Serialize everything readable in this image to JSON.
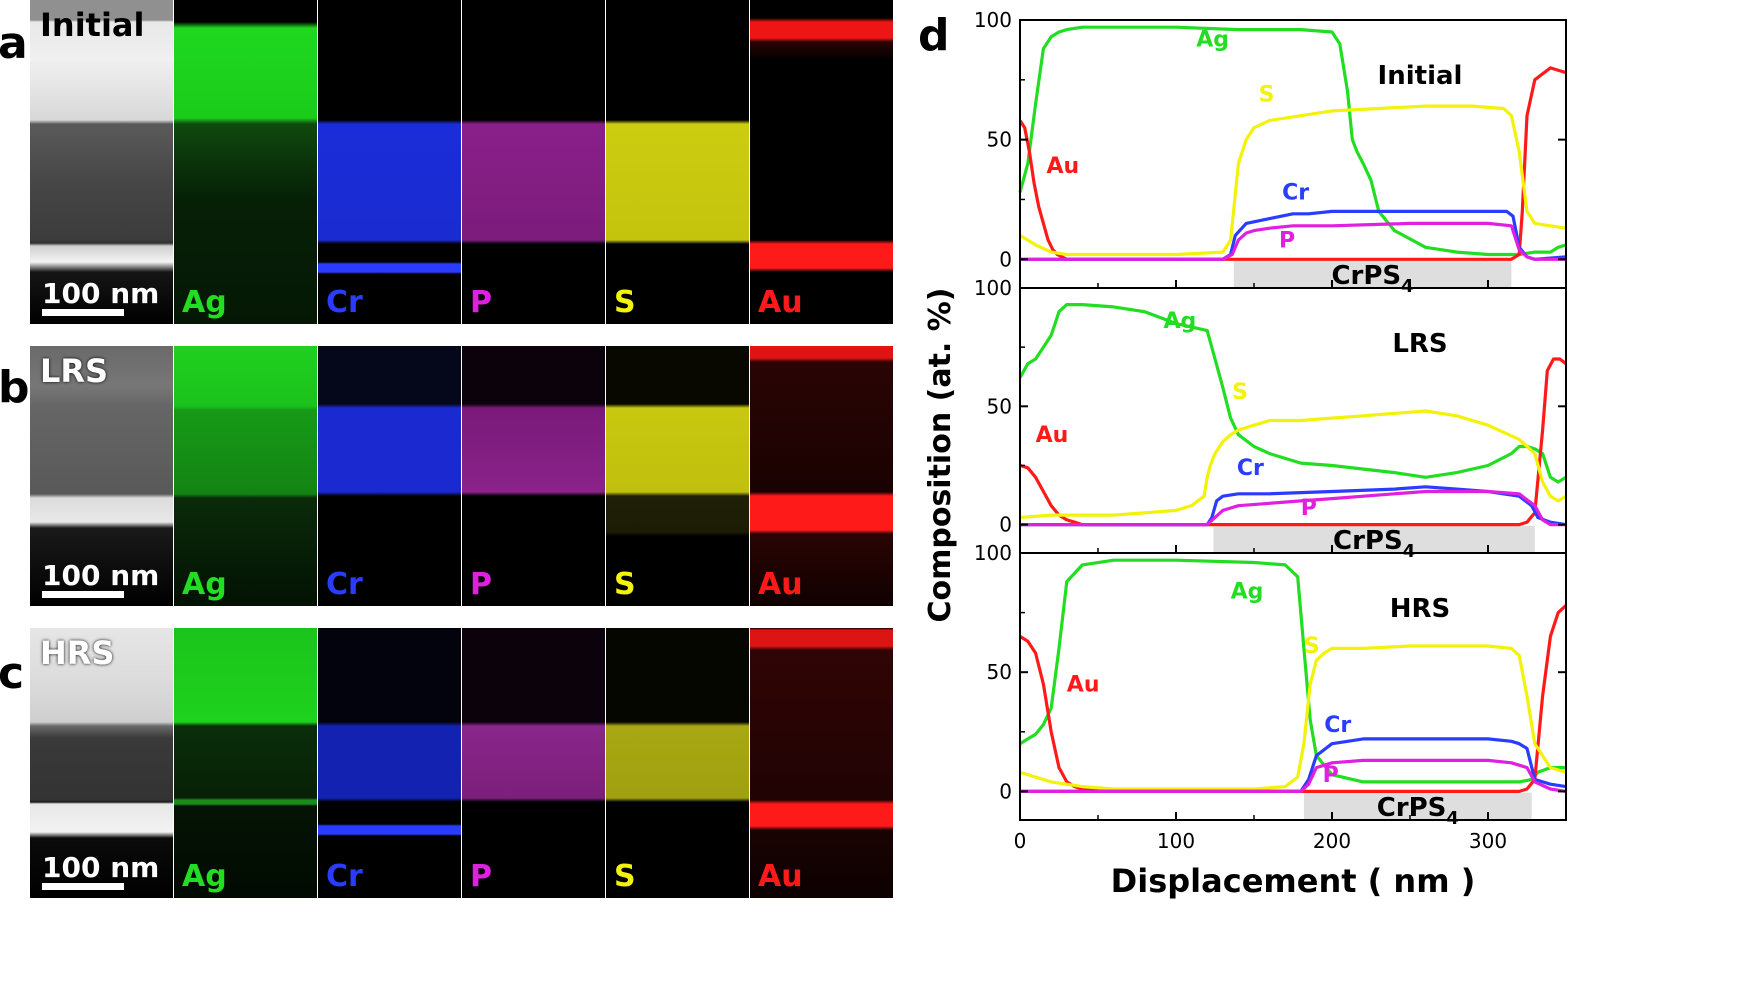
{
  "figure": {
    "panels": [
      {
        "letter": "a",
        "state": "Initial",
        "scale": "100 nm"
      },
      {
        "letter": "b",
        "state": "LRS",
        "scale": "100 nm"
      },
      {
        "letter": "c",
        "state": "HRS",
        "scale": "100 nm"
      }
    ],
    "elements": [
      {
        "label": "Ag",
        "color": "#22dd22"
      },
      {
        "label": "Cr",
        "color": "#2a3cff"
      },
      {
        "label": "P",
        "color": "#e020e0"
      },
      {
        "label": "S",
        "color": "#f2f20a"
      },
      {
        "label": "Au",
        "color": "#ff1a1a"
      }
    ],
    "panel_d_letter": "d"
  },
  "chart_data": {
    "type": "line",
    "panel": "d",
    "xlabel": "Displacement ( nm )",
    "ylabel": "Composition (at. %)",
    "xlim": [
      0,
      350
    ],
    "ylim": [
      -12,
      100
    ],
    "xticks": [
      "0",
      "100",
      "200",
      "300"
    ],
    "yticks": [
      "0",
      "50",
      "100"
    ],
    "subplots": [
      {
        "title": "Initial",
        "layer_label": "CrPS4",
        "layer_label_main": "CrPS",
        "layer_label_sub": "4",
        "layer_range": [
          137,
          315
        ],
        "series": [
          {
            "name": "Ag",
            "color": "#22dd22",
            "label_at": [
              113,
              89
            ],
            "x": [
              0,
              5,
              10,
              15,
              20,
              25,
              30,
              40,
              60,
              100,
              140,
              180,
              200,
              205,
              210,
              213,
              216,
              220,
              225,
              230,
              240,
              260,
              280,
              300,
              320,
              330,
              340,
              345,
              350
            ],
            "y": [
              28,
              40,
              65,
              88,
              93,
              95,
              96,
              97,
              97,
              97,
              96,
              96,
              95,
              90,
              70,
              50,
              45,
              40,
              33,
              20,
              12,
              5,
              3,
              2,
              2,
              3,
              3,
              5,
              6
            ]
          },
          {
            "name": "Au",
            "color": "#ff1a1a",
            "label_at": [
              17,
              36
            ],
            "x": [
              0,
              3,
              6,
              9,
              12,
              15,
              18,
              21,
              24,
              27,
              30,
              40,
              60,
              100,
              150,
              200,
              250,
              300,
              315,
              320,
              322,
              325,
              330,
              340,
              350
            ],
            "y": [
              58,
              55,
              45,
              32,
              22,
              15,
              8,
              4,
              2,
              1,
              0,
              0,
              0,
              0,
              0,
              0,
              0,
              0,
              0,
              2,
              20,
              60,
              75,
              80,
              78
            ]
          },
          {
            "name": "S",
            "color": "#f2f20a",
            "label_at": [
              153,
              66
            ],
            "x": [
              0,
              10,
              20,
              30,
              40,
              60,
              100,
              130,
              135,
              140,
              145,
              150,
              160,
              180,
              200,
              230,
              260,
              290,
              310,
              315,
              320,
              325,
              330,
              340,
              350
            ],
            "y": [
              10,
              6,
              3,
              2,
              2,
              2,
              2,
              3,
              8,
              40,
              50,
              55,
              58,
              60,
              62,
              63,
              64,
              64,
              63,
              60,
              45,
              20,
              15,
              14,
              13
            ]
          },
          {
            "name": "Cr",
            "color": "#2a3cff",
            "label_at": [
              168,
              25
            ],
            "x": [
              0,
              50,
              100,
              130,
              135,
              138,
              145,
              160,
              175,
              185,
              200,
              250,
              300,
              312,
              316,
              320,
              325,
              330,
              350
            ],
            "y": [
              0,
              0,
              0,
              0,
              2,
              10,
              15,
              17,
              19,
              19,
              20,
              20,
              20,
              20,
              18,
              5,
              1,
              0,
              1
            ]
          },
          {
            "name": "P",
            "color": "#e020e0",
            "label_at": [
              166,
              5
            ],
            "x": [
              0,
              50,
              100,
              130,
              136,
              140,
              145,
              150,
              160,
              175,
              190,
              200,
              250,
              300,
              315,
              320,
              325,
              330,
              340,
              350
            ],
            "y": [
              0,
              0,
              0,
              0,
              2,
              8,
              11,
              12,
              13,
              14,
              14,
              14,
              15,
              15,
              14,
              4,
              1,
              0,
              0,
              0
            ]
          }
        ]
      },
      {
        "title": "LRS",
        "layer_label": "CrPS4",
        "layer_label_main": "CrPS",
        "layer_label_sub": "4",
        "layer_range": [
          124,
          330
        ],
        "series": [
          {
            "name": "Ag",
            "color": "#22dd22",
            "label_at": [
              92,
              83
            ],
            "x": [
              0,
              5,
              10,
              15,
              20,
              25,
              30,
              40,
              60,
              80,
              100,
              120,
              125,
              130,
              135,
              140,
              150,
              160,
              170,
              180,
              200,
              240,
              260,
              280,
              300,
              315,
              320,
              325,
              330,
              335,
              340,
              345,
              350
            ],
            "y": [
              62,
              68,
              70,
              75,
              80,
              90,
              93,
              93,
              92,
              90,
              85,
              82,
              70,
              58,
              45,
              38,
              33,
              30,
              28,
              26,
              25,
              22,
              20,
              22,
              25,
              30,
              33,
              33,
              32,
              30,
              20,
              18,
              20
            ]
          },
          {
            "name": "Au",
            "color": "#ff1a1a",
            "label_at": [
              10,
              35
            ],
            "x": [
              0,
              5,
              10,
              15,
              20,
              25,
              30,
              35,
              40,
              60,
              100,
              150,
              200,
              250,
              300,
              320,
              325,
              330,
              335,
              338,
              342,
              346,
              350
            ],
            "y": [
              25,
              24,
              20,
              14,
              8,
              4,
              2,
              1,
              0,
              0,
              0,
              0,
              0,
              0,
              0,
              0,
              1,
              5,
              40,
              65,
              70,
              70,
              68
            ]
          },
          {
            "name": "S",
            "color": "#f2f20a",
            "label_at": [
              136,
              53
            ],
            "x": [
              0,
              20,
              40,
              60,
              80,
              100,
              110,
              118,
              120,
              122,
              125,
              130,
              135,
              140,
              150,
              160,
              180,
              200,
              220,
              240,
              260,
              280,
              300,
              320,
              330,
              335,
              340,
              345,
              350
            ],
            "y": [
              3,
              4,
              4,
              4,
              5,
              6,
              8,
              12,
              20,
              25,
              30,
              35,
              38,
              40,
              42,
              44,
              44,
              45,
              46,
              47,
              48,
              46,
              42,
              36,
              30,
              18,
              12,
              10,
              12
            ]
          },
          {
            "name": "Cr",
            "color": "#2a3cff",
            "label_at": [
              139,
              21
            ],
            "x": [
              0,
              50,
              100,
              120,
              123,
              126,
              130,
              140,
              160,
              200,
              240,
              260,
              280,
              300,
              320,
              328,
              332,
              340,
              350
            ],
            "y": [
              0,
              0,
              0,
              0,
              3,
              10,
              12,
              13,
              13,
              14,
              15,
              16,
              15,
              14,
              12,
              8,
              3,
              1,
              0
            ]
          },
          {
            "name": "P",
            "color": "#e020e0",
            "label_at": [
              180,
              4
            ],
            "x": [
              0,
              50,
              100,
              120,
              125,
              130,
              140,
              160,
              180,
              200,
              240,
              260,
              280,
              300,
              320,
              330,
              335,
              340,
              350
            ],
            "y": [
              0,
              0,
              0,
              0,
              3,
              6,
              8,
              9,
              10,
              11,
              13,
              14,
              14,
              14,
              13,
              8,
              2,
              0,
              0
            ]
          }
        ]
      },
      {
        "title": "HRS",
        "layer_label": "CrPS4",
        "layer_label_main": "CrPS",
        "layer_label_sub": "4",
        "layer_range": [
          182,
          328
        ],
        "series": [
          {
            "name": "Ag",
            "color": "#22dd22",
            "label_at": [
              135,
              81
            ],
            "x": [
              0,
              5,
              10,
              15,
              20,
              25,
              30,
              40,
              60,
              100,
              150,
              170,
              178,
              182,
              186,
              190,
              200,
              220,
              250,
              280,
              300,
              320,
              328,
              332,
              340,
              350
            ],
            "y": [
              20,
              22,
              24,
              28,
              35,
              60,
              88,
              95,
              97,
              97,
              96,
              95,
              90,
              60,
              30,
              15,
              7,
              4,
              4,
              4,
              4,
              4,
              5,
              8,
              10,
              10
            ]
          },
          {
            "name": "Au",
            "color": "#ff1a1a",
            "label_at": [
              30,
              42
            ],
            "x": [
              0,
              5,
              10,
              15,
              20,
              25,
              30,
              35,
              40,
              60,
              100,
              150,
              200,
              250,
              300,
              320,
              325,
              330,
              335,
              340,
              345,
              350
            ],
            "y": [
              65,
              63,
              58,
              45,
              25,
              10,
              4,
              2,
              1,
              0,
              0,
              0,
              0,
              0,
              0,
              0,
              1,
              5,
              40,
              65,
              75,
              78
            ]
          },
          {
            "name": "S",
            "color": "#f2f20a",
            "label_at": [
              182,
              58
            ],
            "x": [
              0,
              20,
              40,
              60,
              100,
              150,
              170,
              178,
              182,
              186,
              190,
              195,
              200,
              220,
              250,
              280,
              300,
              315,
              320,
              325,
              330,
              340,
              350
            ],
            "y": [
              8,
              4,
              2,
              1,
              1,
              1,
              2,
              6,
              20,
              45,
              55,
              58,
              60,
              60,
              61,
              61,
              61,
              60,
              57,
              40,
              20,
              10,
              8
            ]
          },
          {
            "name": "Cr",
            "color": "#2a3cff",
            "label_at": [
              195,
              25
            ],
            "x": [
              0,
              50,
              100,
              150,
              180,
              185,
              190,
              200,
              220,
              250,
              280,
              300,
              315,
              320,
              325,
              330,
              340,
              350
            ],
            "y": [
              0,
              0,
              0,
              0,
              0,
              5,
              15,
              20,
              22,
              22,
              22,
              22,
              21,
              20,
              18,
              5,
              3,
              2
            ]
          },
          {
            "name": "P",
            "color": "#e020e0",
            "label_at": [
              194,
              4
            ],
            "x": [
              0,
              50,
              100,
              150,
              180,
              185,
              190,
              200,
              220,
              250,
              280,
              300,
              315,
              320,
              325,
              330,
              340,
              350
            ],
            "y": [
              0,
              0,
              0,
              0,
              0,
              3,
              10,
              12,
              13,
              13,
              13,
              13,
              12,
              11,
              10,
              4,
              1,
              0
            ]
          }
        ]
      }
    ]
  }
}
